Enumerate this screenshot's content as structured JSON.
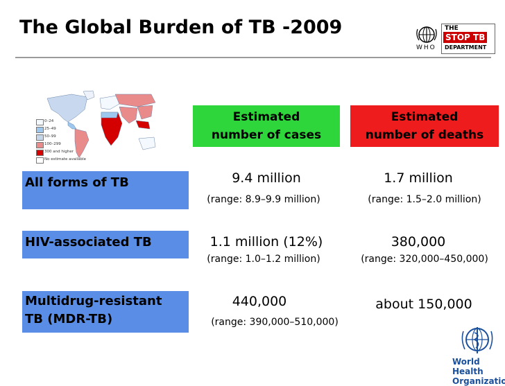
{
  "title": "The Global Burden of TB -2009",
  "logos": {
    "who_abbr": "WHO",
    "stoptb_the": "THE",
    "stoptb_name": "STOP TB",
    "stoptb_dept": "DEPARTMENT",
    "who_org_line1": "World Health",
    "who_org_line2": "Organization"
  },
  "map_legend": [
    {
      "label": "0–24",
      "color": "#f4f8ff"
    },
    {
      "label": "25–49",
      "color": "#9ec7ee"
    },
    {
      "label": "50–99",
      "color": "#c5d6e8"
    },
    {
      "label": "100–299",
      "color": "#e98b8b"
    },
    {
      "label": "300 and higher",
      "color": "#d40000"
    },
    {
      "label": "No estimate available",
      "color": "#ffffff"
    }
  ],
  "columns": {
    "cases_header_line1": "Estimated",
    "cases_header_line2": "number of cases",
    "deaths_header_line1": "Estimated",
    "deaths_header_line2": "number of deaths",
    "cases_color": "#2fd63b",
    "deaths_color": "#ee1c1c"
  },
  "rows": [
    {
      "label_line1": "All forms of TB",
      "label_line2": "",
      "cases": "9.4 million",
      "cases_range": "(range: 8.9–9.9 million)",
      "deaths": "1.7 million",
      "deaths_range": "(range: 1.5–2.0 million)"
    },
    {
      "label_line1": "HIV-associated TB",
      "label_line2": "",
      "cases": "1.1 million (12%)",
      "cases_range": "(range: 1.0–1.2 million)",
      "deaths": "380,000",
      "deaths_range": "(range: 320,000–450,000)"
    },
    {
      "label_line1": "Multidrug-resistant",
      "label_line2": "TB (MDR-TB)",
      "cases": "440,000",
      "cases_range": "(range: 390,000–510,000)",
      "deaths": "about 150,000",
      "deaths_range": ""
    }
  ],
  "label_color": "#5a8ee6"
}
